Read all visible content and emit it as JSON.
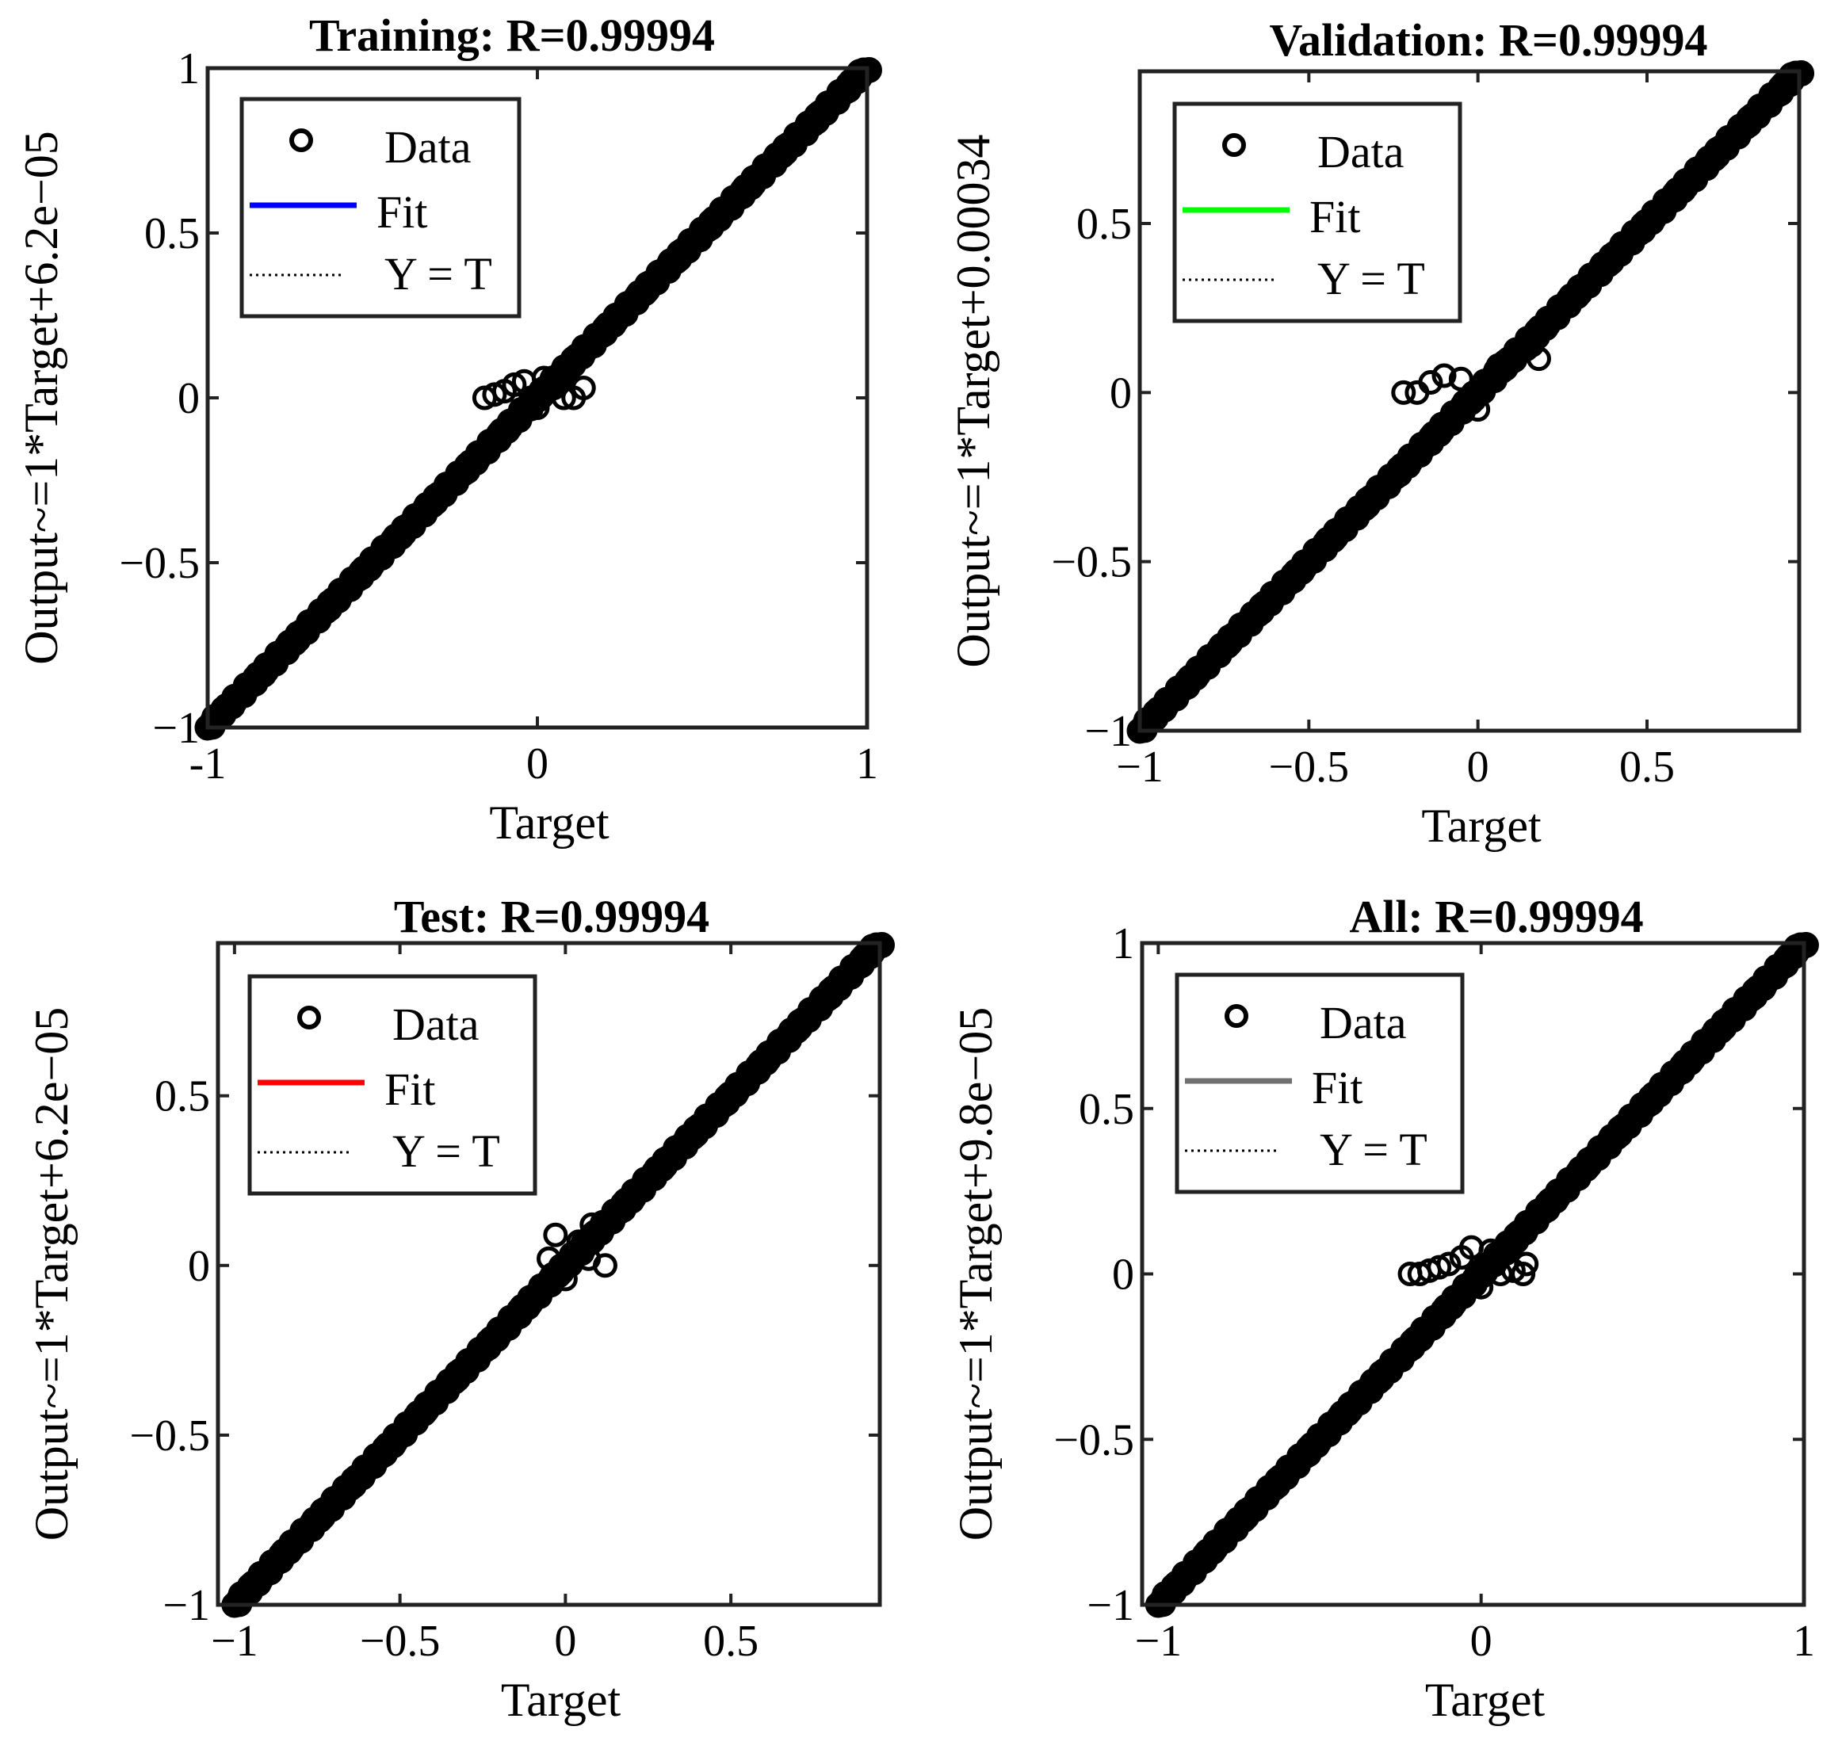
{
  "chart_data": [
    {
      "type": "scatter",
      "title": "Training: R=0.99994",
      "xlabel": "Target",
      "ylabel": "Output~=1*Target+6.2e−05",
      "xlim": [
        -1,
        1
      ],
      "ylim": [
        -1,
        1
      ],
      "xticks": [
        -1,
        0,
        1
      ],
      "xtick_labels": [
        "-1",
        "0",
        "1"
      ],
      "yticks": [
        -1,
        -0.5,
        0,
        0.5,
        1
      ],
      "ytick_labels": [
        "−1",
        "−0.5",
        "0",
        "0.5",
        "1"
      ],
      "fit": {
        "slope": 1,
        "intercept": 6.2e-05,
        "color": "#0000ff"
      },
      "diag_points": {
        "from": -1,
        "to": 1
      },
      "outliers": [
        [
          -0.16,
          0.0
        ],
        [
          -0.13,
          0.01
        ],
        [
          -0.1,
          0.02
        ],
        [
          -0.07,
          0.04
        ],
        [
          -0.04,
          0.05
        ],
        [
          -0.02,
          0.0
        ],
        [
          0.0,
          -0.03
        ],
        [
          0.02,
          0.06
        ],
        [
          0.05,
          0.03
        ],
        [
          0.08,
          0.0
        ],
        [
          0.11,
          0.0
        ],
        [
          0.14,
          0.03
        ]
      ],
      "legend": {
        "data": "Data",
        "fit": "Fit",
        "yt": "Y = T",
        "position": "top-left"
      }
    },
    {
      "type": "scatter",
      "title": "Validation: R=0.99994",
      "xlabel": "Target",
      "ylabel": "Output~=1*Target+0.00034",
      "xlim": [
        -1,
        0.95
      ],
      "ylim": [
        -1,
        0.95
      ],
      "xticks": [
        -1,
        -0.5,
        0,
        0.5
      ],
      "xtick_labels": [
        "−1",
        "−0.5",
        "0",
        "0.5"
      ],
      "yticks": [
        -1,
        -0.5,
        0,
        0.5
      ],
      "ytick_labels": [
        "−1",
        "−0.5",
        "0",
        "0.5"
      ],
      "fit": {
        "slope": 1,
        "intercept": 0.00034,
        "color": "#00ff00"
      },
      "diag_points": {
        "from": -1,
        "to": 0.95
      },
      "outliers": [
        [
          -0.22,
          0.0
        ],
        [
          -0.18,
          0.0
        ],
        [
          -0.14,
          0.03
        ],
        [
          -0.1,
          0.05
        ],
        [
          -0.05,
          0.04
        ],
        [
          0.0,
          -0.05
        ],
        [
          0.06,
          0.08
        ],
        [
          0.1,
          0.09
        ],
        [
          0.16,
          0.14
        ],
        [
          0.18,
          0.1
        ]
      ],
      "legend": {
        "data": "Data",
        "fit": "Fit",
        "yt": "Y = T",
        "position": "top-left"
      }
    },
    {
      "type": "scatter",
      "title": "Test: R=0.99994",
      "xlabel": "Target",
      "ylabel": "Output~=1*Target+6.2e−05",
      "xlim": [
        -1.05,
        0.95
      ],
      "ylim": [
        -1,
        0.95
      ],
      "xticks": [
        -1,
        -0.5,
        0,
        0.5
      ],
      "xtick_labels": [
        "−1",
        "−0.5",
        "0",
        "0.5"
      ],
      "yticks": [
        -1,
        -0.5,
        0,
        0.5
      ],
      "ytick_labels": [
        "−1",
        "−0.5",
        "0",
        "0.5"
      ],
      "fit": {
        "slope": 1,
        "intercept": 6.2e-05,
        "color": "#ff0000"
      },
      "diag_points": {
        "from": -1,
        "to": 0.95
      },
      "outliers": [
        [
          -0.05,
          0.02
        ],
        [
          -0.03,
          0.09
        ],
        [
          0.0,
          -0.04
        ],
        [
          0.04,
          0.07
        ],
        [
          0.07,
          0.02
        ],
        [
          0.12,
          0.0
        ],
        [
          0.08,
          0.12
        ]
      ],
      "legend": {
        "data": "Data",
        "fit": "Fit",
        "yt": "Y = T",
        "position": "top-left"
      }
    },
    {
      "type": "scatter",
      "title": "All: R=0.99994",
      "xlabel": "Target",
      "ylabel": "Output~=1*Target+9.8e−05",
      "xlim": [
        -1.05,
        1
      ],
      "ylim": [
        -1,
        1
      ],
      "xticks": [
        -1,
        0,
        1
      ],
      "xtick_labels": [
        "−1",
        "0",
        "1"
      ],
      "yticks": [
        -1,
        -0.5,
        0,
        0.5,
        1
      ],
      "ytick_labels": [
        "−1",
        "−0.5",
        "0",
        "0.5",
        "1"
      ],
      "fit": {
        "slope": 1,
        "intercept": 9.8e-05,
        "color": "#707070"
      },
      "diag_points": {
        "from": -1,
        "to": 1
      },
      "outliers": [
        [
          -0.22,
          0.0
        ],
        [
          -0.19,
          0.0
        ],
        [
          -0.16,
          0.01
        ],
        [
          -0.13,
          0.02
        ],
        [
          -0.1,
          0.03
        ],
        [
          -0.06,
          0.05
        ],
        [
          -0.03,
          0.08
        ],
        [
          0.0,
          -0.04
        ],
        [
          0.03,
          0.07
        ],
        [
          0.06,
          0.0
        ],
        [
          0.1,
          0.01
        ],
        [
          0.13,
          0.0
        ],
        [
          0.14,
          0.03
        ]
      ],
      "legend": {
        "data": "Data",
        "fit": "Fit",
        "yt": "Y = T",
        "position": "top-left"
      }
    }
  ]
}
